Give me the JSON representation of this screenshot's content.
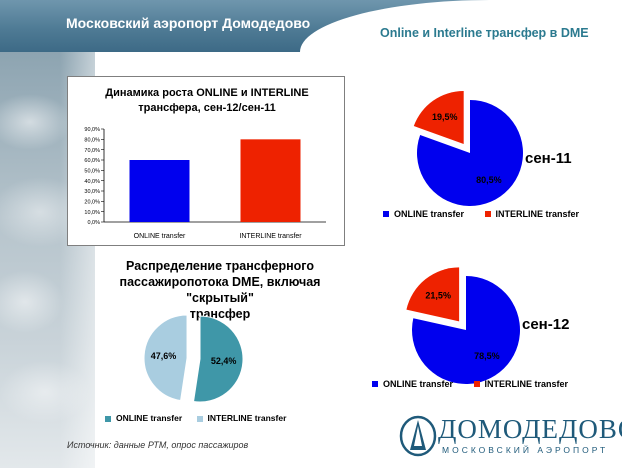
{
  "header": {
    "title": "Московский аэропорт Домодедово",
    "right_title": "Online и Interline трансфер в DME"
  },
  "colors": {
    "online_blue": "#0000ee",
    "interline_red": "#ee2200",
    "online_teal": "#3f97a8",
    "interline_lightblue": "#a9cde0",
    "header_band": "#4f7b95",
    "title_teal": "#2b7a8f"
  },
  "bar_chart": {
    "title_line1": "Динамика роста ONLINE и INTERLINE",
    "title_line2": "трансфера, сен-12/сен-11",
    "tick_labels": [
      "0,0%",
      "10,0%",
      "20,0%",
      "30,0%",
      "40,0%",
      "50,0%",
      "60,0%",
      "70,0%",
      "80,0%",
      "90,0%"
    ],
    "category_labels": [
      "ONLINE transfer",
      "INTERLINE transfer"
    ]
  },
  "distribution": {
    "title_line1": "Распределение трансферного",
    "title_line2": "пассажиропотока DME, включая \"скрытый\"",
    "title_line3": "трансфер",
    "legend_online": "ONLINE transfer",
    "legend_interline": "INTERLINE transfer"
  },
  "sep11": {
    "month": "сен-11",
    "legend_online": "ONLINE transfer",
    "legend_interline": "INTERLINE transfer"
  },
  "sep12": {
    "month": "сен-12",
    "legend_online": "ONLINE transfer",
    "legend_interline": "INTERLINE transfer"
  },
  "footer": {
    "source": "Источник:  данные РТМ, опрос пассажиров",
    "logo_name": "ДОМОДЕДОВО",
    "logo_sub": "МОСКОВСКИЙ АЭРОПОРТ"
  },
  "chart_data": [
    {
      "type": "bar",
      "title": "Динамика роста ONLINE и INTERLINE трансфера, сен-12/сен-11",
      "categories": [
        "ONLINE transfer",
        "INTERLINE transfer"
      ],
      "values": [
        60,
        80
      ],
      "ylim": [
        0,
        90
      ],
      "yunit": "%",
      "grid": false,
      "colors": [
        "#0000ee",
        "#ee2200"
      ]
    },
    {
      "type": "pie",
      "title": "Распределение трансферного пассажиропотока DME, включая \"скрытый\" трансфер",
      "categories": [
        "ONLINE transfer",
        "INTERLINE transfer"
      ],
      "values": [
        52.4,
        47.6
      ],
      "data_labels": [
        "52,4%",
        "47,6%"
      ],
      "legend": "bottom",
      "colors": [
        "#3f97a8",
        "#a9cde0"
      ]
    },
    {
      "type": "pie",
      "title": "сен-11",
      "categories": [
        "ONLINE transfer",
        "INTERLINE transfer"
      ],
      "values": [
        80.5,
        19.5
      ],
      "data_labels": [
        "80,5%",
        "19,5%"
      ],
      "legend": "bottom",
      "colors": [
        "#0000ee",
        "#ee2200"
      ]
    },
    {
      "type": "pie",
      "title": "сен-12",
      "categories": [
        "ONLINE transfer",
        "INTERLINE transfer"
      ],
      "values": [
        78.5,
        21.5
      ],
      "data_labels": [
        "78,5%",
        "21,5%"
      ],
      "legend": "bottom",
      "colors": [
        "#0000ee",
        "#ee2200"
      ]
    }
  ]
}
